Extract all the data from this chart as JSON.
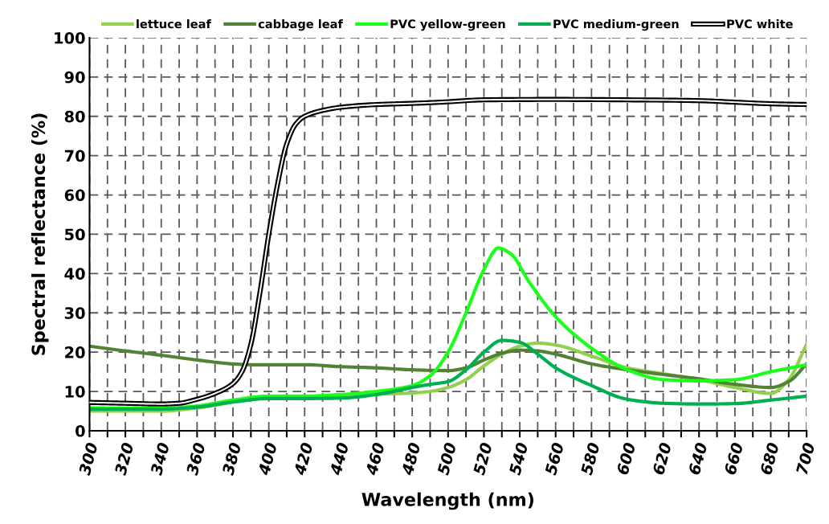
{
  "chart_data": {
    "type": "line",
    "xlabel": "Wavelength (nm)",
    "ylabel": "Spectral reflectance (%)",
    "xlim": [
      300,
      700
    ],
    "ylim": [
      0,
      100
    ],
    "xticks": [
      300,
      {
        "value": 310,
        "label": null
      },
      320,
      {
        "value": 330,
        "label": null
      },
      340,
      {
        "value": 350,
        "label": null
      },
      360,
      {
        "value": 370,
        "label": null
      },
      380,
      {
        "value": 390,
        "label": null
      },
      400,
      {
        "value": 410,
        "label": null
      },
      420,
      {
        "value": 430,
        "label": null
      },
      440,
      {
        "value": 450,
        "label": null
      },
      460,
      {
        "value": 470,
        "label": null
      },
      480,
      {
        "value": 490,
        "label": null
      },
      500,
      {
        "value": 510,
        "label": null
      },
      520,
      {
        "value": 530,
        "label": null
      },
      540,
      {
        "value": 550,
        "label": null
      },
      560,
      {
        "value": 570,
        "label": null
      },
      580,
      {
        "value": 590,
        "label": null
      },
      600,
      {
        "value": 610,
        "label": null
      },
      620,
      {
        "value": 630,
        "label": null
      },
      640,
      {
        "value": 650,
        "label": null
      },
      660,
      {
        "value": 670,
        "label": null
      },
      680,
      {
        "value": 690,
        "label": null
      },
      700
    ],
    "yticks": [
      0,
      10,
      20,
      30,
      40,
      50,
      60,
      70,
      80,
      90,
      100
    ],
    "grid": true,
    "legend": "top",
    "marker": "none",
    "line_style": "solid",
    "series": [
      {
        "name": "lettuce leaf",
        "color": "#92d050",
        "x": [
          300,
          340,
          360,
          380,
          400,
          420,
          440,
          460,
          480,
          490,
          500,
          510,
          520,
          530,
          540,
          550,
          560,
          580,
          600,
          620,
          640,
          660,
          680,
          690,
          700
        ],
        "values": [
          5,
          5,
          5.8,
          7.3,
          8.6,
          8.6,
          9,
          9.3,
          9.6,
          10,
          11,
          13,
          16.5,
          19.5,
          21.5,
          22.3,
          21.8,
          19,
          16,
          14.5,
          13,
          11,
          9.5,
          13,
          22
        ]
      },
      {
        "name": "cabbage leaf",
        "color": "#548235",
        "x": [
          300,
          320,
          340,
          360,
          380,
          390,
          420,
          440,
          460,
          480,
          500,
          510,
          520,
          530,
          540,
          550,
          560,
          580,
          600,
          620,
          640,
          660,
          680,
          690,
          700
        ],
        "values": [
          21.5,
          20.3,
          19.2,
          18,
          17,
          16.8,
          16.8,
          16.3,
          16,
          15.5,
          15.3,
          16,
          18,
          19.7,
          20.5,
          20.3,
          19.5,
          17,
          15.5,
          14.3,
          13.2,
          11.8,
          11,
          12.5,
          17
        ]
      },
      {
        "name": "PVC yellow-green",
        "color": "#1aff1a",
        "x": [
          300,
          340,
          360,
          380,
          400,
          420,
          440,
          460,
          480,
          490,
          500,
          510,
          520,
          528,
          535,
          545,
          560,
          580,
          600,
          620,
          640,
          660,
          680,
          700
        ],
        "values": [
          5.8,
          5.7,
          6.3,
          7.8,
          8.8,
          8.8,
          9.2,
          10,
          11.5,
          14,
          20,
          30,
          41,
          46.5,
          45,
          38,
          29,
          21,
          15.5,
          13,
          12.7,
          13,
          15,
          16.8
        ]
      },
      {
        "name": "PVC medium-green",
        "color": "#00b050",
        "x": [
          300,
          340,
          360,
          380,
          400,
          420,
          440,
          460,
          480,
          490,
          500,
          510,
          520,
          530,
          540,
          550,
          560,
          580,
          600,
          620,
          640,
          660,
          680,
          700
        ],
        "values": [
          5.5,
          5.5,
          6,
          7.3,
          8.2,
          8.2,
          8.3,
          9.2,
          11,
          11.8,
          12.5,
          15.5,
          20,
          23,
          22.5,
          19.5,
          16,
          11.5,
          8,
          7,
          6.8,
          6.9,
          7.8,
          8.8
        ]
      },
      {
        "name": "PVC white",
        "color": "#ffffff",
        "x": [
          300,
          320,
          340,
          350,
          360,
          370,
          380,
          385,
          390,
          395,
          400,
          405,
          410,
          415,
          420,
          430,
          440,
          460,
          480,
          500,
          520,
          560,
          600,
          640,
          660,
          680,
          700
        ],
        "values": [
          7.2,
          7,
          6.8,
          7,
          8,
          9.5,
          12,
          15,
          22,
          35,
          50,
          63,
          73,
          78,
          80,
          81.5,
          82.3,
          83,
          83.3,
          83.7,
          84.2,
          84.3,
          84.2,
          84,
          83.6,
          83.2,
          83
        ]
      }
    ]
  }
}
